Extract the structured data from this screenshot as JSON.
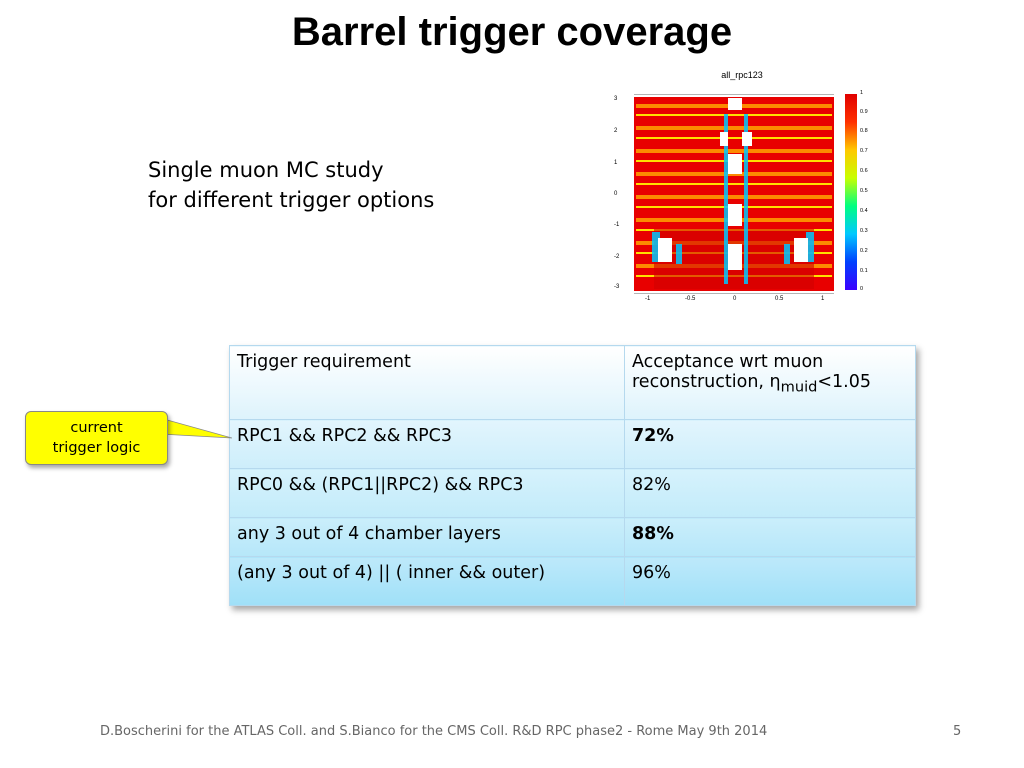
{
  "title": "Barrel trigger coverage",
  "subtitle": [
    "Single muon MC study",
    "for different trigger options"
  ],
  "plot": {
    "title": "all_rpc123",
    "y_ticks": [
      "3",
      "2",
      "1",
      "0",
      "-1",
      "-2",
      "-3"
    ],
    "x_ticks": [
      "-1",
      "-0.5",
      "0",
      "0.5",
      "1"
    ],
    "colorbar_ticks": [
      "1",
      "0.9",
      "0.8",
      "0.7",
      "0.6",
      "0.5",
      "0.4",
      "0.3",
      "0.2",
      "0.1",
      "0"
    ]
  },
  "table": {
    "header": {
      "col1": "Trigger requirement",
      "col2_line1": "Acceptance wrt muon",
      "col2_line2_prefix": "reconstruction, η",
      "col2_sub": "muid",
      "col2_suffix": "<1.05"
    },
    "rows": [
      {
        "requirement": "RPC1 && RPC2 && RPC3",
        "acceptance": "72%"
      },
      {
        "requirement": "RPC0 && (RPC1||RPC2) && RPC3",
        "acceptance": "82%"
      },
      {
        "requirement": "any 3 out of 4 chamber layers",
        "acceptance": "88%"
      },
      {
        "requirement": "(any 3 out of 4) || ( inner && outer)",
        "acceptance": "96%"
      }
    ]
  },
  "callout": [
    "current",
    "trigger logic"
  ],
  "footer": "D.Boscherini for the ATLAS Coll. and S.Bianco for the CMS Coll. R&D RPC phase2 - Rome May 9th 2014",
  "page_number": "5"
}
